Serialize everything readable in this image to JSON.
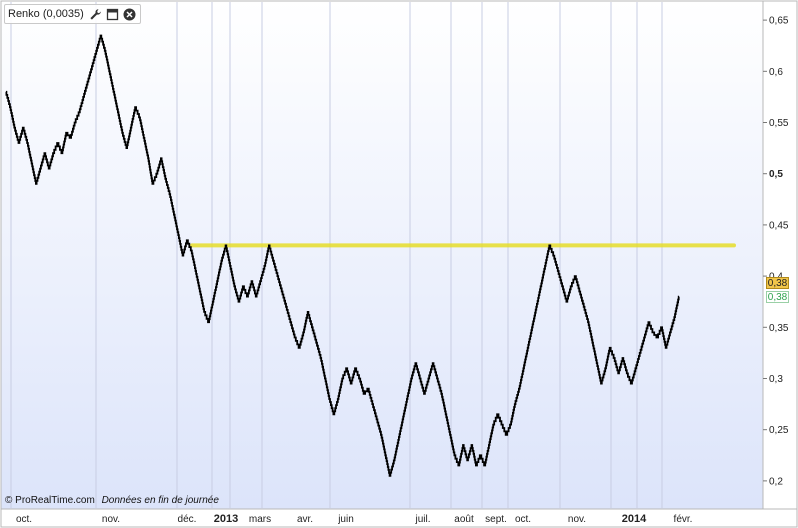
{
  "header": {
    "title": "Renko (0,0035)",
    "icons": [
      "wrench-icon",
      "maximize-icon",
      "close-icon"
    ]
  },
  "footer": {
    "copyright": "© ProRealTime.com",
    "note": "Données en fin de journée"
  },
  "badges": {
    "last_value": "0,38",
    "ref_value": "0,38"
  },
  "colors": {
    "line": "#000000",
    "resistance": "#e6dd2a",
    "background_top": "#ffffff",
    "background_bottom": "#dce4fa",
    "badge_last": "#f2c64a",
    "badge_ref_text": "#2fa24e"
  },
  "chart_data": {
    "type": "line",
    "title": "Renko (0,0035)",
    "ylim": [
      0.195,
      0.655
    ],
    "y_ticks": [
      {
        "value": 0.65,
        "label": "0,65",
        "bold": false
      },
      {
        "value": 0.6,
        "label": "0,6",
        "bold": false
      },
      {
        "value": 0.55,
        "label": "0,55",
        "bold": false
      },
      {
        "value": 0.5,
        "label": "0,5",
        "bold": true
      },
      {
        "value": 0.45,
        "label": "0,45",
        "bold": false
      },
      {
        "value": 0.4,
        "label": "0,4",
        "bold": false
      },
      {
        "value": 0.35,
        "label": "0,35",
        "bold": false
      },
      {
        "value": 0.3,
        "label": "0,3",
        "bold": false
      },
      {
        "value": 0.25,
        "label": "0,25",
        "bold": false
      },
      {
        "value": 0.2,
        "label": "0,2",
        "bold": false
      }
    ],
    "x_ticks": [
      {
        "label": "oct.",
        "bold": false
      },
      {
        "label": "nov.",
        "bold": false
      },
      {
        "label": "déc.",
        "bold": false
      },
      {
        "label": "2013",
        "bold": true
      },
      {
        "label": "mars",
        "bold": false
      },
      {
        "label": "avr.",
        "bold": false
      },
      {
        "label": "juin",
        "bold": false
      },
      {
        "label": "juil.",
        "bold": false
      },
      {
        "label": "août",
        "bold": false
      },
      {
        "label": "sept.",
        "bold": false
      },
      {
        "label": "oct.",
        "bold": false
      },
      {
        "label": "nov.",
        "bold": false
      },
      {
        "label": "2014",
        "bold": true
      },
      {
        "label": "févr.",
        "bold": false
      }
    ],
    "series": [
      {
        "name": "Renko",
        "values": [
          0.58,
          0.565,
          0.545,
          0.53,
          0.545,
          0.53,
          0.51,
          0.49,
          0.505,
          0.52,
          0.505,
          0.52,
          0.53,
          0.52,
          0.54,
          0.535,
          0.55,
          0.56,
          0.575,
          0.59,
          0.605,
          0.62,
          0.635,
          0.62,
          0.6,
          0.58,
          0.56,
          0.54,
          0.525,
          0.545,
          0.565,
          0.555,
          0.535,
          0.515,
          0.49,
          0.5,
          0.515,
          0.495,
          0.48,
          0.46,
          0.44,
          0.42,
          0.435,
          0.425,
          0.405,
          0.385,
          0.365,
          0.355,
          0.375,
          0.395,
          0.415,
          0.43,
          0.41,
          0.39,
          0.375,
          0.39,
          0.38,
          0.395,
          0.38,
          0.395,
          0.41,
          0.43,
          0.415,
          0.4,
          0.385,
          0.37,
          0.355,
          0.34,
          0.33,
          0.345,
          0.365,
          0.35,
          0.335,
          0.32,
          0.3,
          0.28,
          0.265,
          0.28,
          0.3,
          0.31,
          0.295,
          0.31,
          0.3,
          0.285,
          0.29,
          0.275,
          0.26,
          0.245,
          0.225,
          0.205,
          0.22,
          0.24,
          0.26,
          0.28,
          0.3,
          0.315,
          0.3,
          0.285,
          0.3,
          0.315,
          0.3,
          0.285,
          0.265,
          0.245,
          0.225,
          0.215,
          0.235,
          0.22,
          0.235,
          0.215,
          0.225,
          0.215,
          0.235,
          0.255,
          0.265,
          0.255,
          0.245,
          0.255,
          0.275,
          0.29,
          0.31,
          0.33,
          0.35,
          0.37,
          0.39,
          0.41,
          0.43,
          0.42,
          0.405,
          0.39,
          0.375,
          0.39,
          0.4,
          0.385,
          0.37,
          0.355,
          0.335,
          0.315,
          0.295,
          0.31,
          0.33,
          0.32,
          0.305,
          0.32,
          0.305,
          0.295,
          0.31,
          0.325,
          0.34,
          0.355,
          0.345,
          0.34,
          0.35,
          0.33,
          0.345,
          0.36,
          0.38
        ]
      }
    ],
    "resistance_level": 0.43,
    "last_value": 0.38,
    "grid": true,
    "legend": "none"
  }
}
